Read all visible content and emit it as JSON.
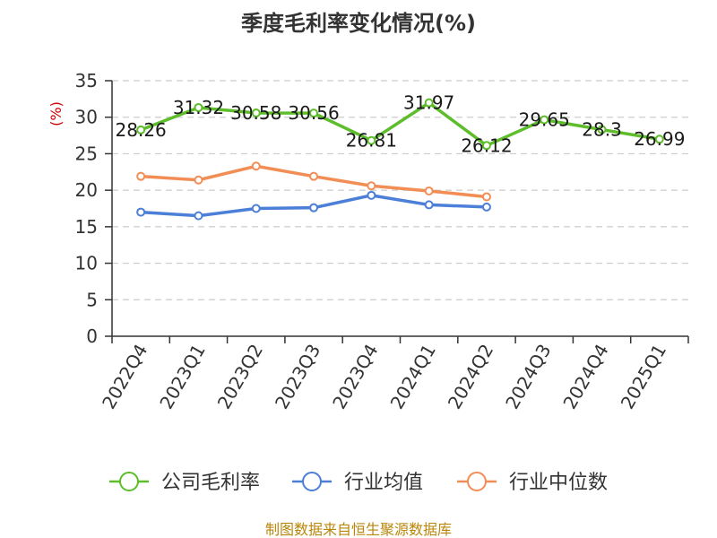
{
  "title": "季度毛利率变化情况(%)",
  "source": "制图数据来自恒生聚源数据库",
  "colors": {
    "title": "#333333",
    "axis": "#333333",
    "grid": "#cccccc",
    "ylabel": "#cc0000",
    "source": "#b8860b"
  },
  "chart_data": {
    "type": "line",
    "title": "季度毛利率变化情况(%)",
    "xlabel": "",
    "ylabel": "(%)",
    "categories": [
      "2022Q4",
      "2023Q1",
      "2023Q2",
      "2023Q3",
      "2023Q4",
      "2024Q1",
      "2024Q2",
      "2024Q3",
      "2024Q4",
      "2025Q1"
    ],
    "ylim": [
      0,
      35
    ],
    "yticks": [
      0,
      5,
      10,
      15,
      20,
      25,
      30,
      35
    ],
    "grid": true,
    "legend_position": "bottom",
    "series": [
      {
        "name": "公司毛利率",
        "color": "#5dbd2a",
        "values": [
          28.26,
          31.32,
          30.58,
          30.56,
          26.81,
          31.97,
          26.12,
          29.65,
          28.3,
          26.99
        ],
        "labels": [
          "28.26",
          "31.32",
          "30.58",
          "30.56",
          "26.81",
          "31.97",
          "26.12",
          "29.65",
          "28.3",
          "26.99"
        ]
      },
      {
        "name": "行业均值",
        "color": "#4c7fd8",
        "values": [
          17.0,
          16.5,
          17.5,
          17.6,
          19.3,
          18.0,
          17.7,
          null,
          null,
          null
        ]
      },
      {
        "name": "行业中位数",
        "color": "#f28e55",
        "values": [
          21.9,
          21.4,
          23.3,
          21.9,
          20.6,
          19.9,
          19.1,
          null,
          null,
          null
        ]
      }
    ]
  }
}
